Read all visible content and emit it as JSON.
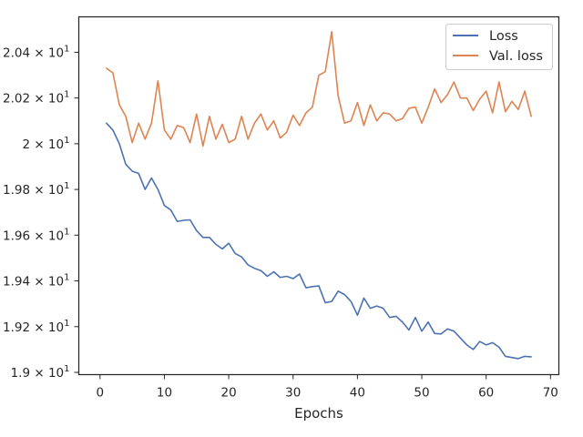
{
  "chart_data": {
    "type": "line",
    "xlabel": "Epochs",
    "ylabel": "",
    "xlim": [
      -3.3,
      71.3
    ],
    "ylim": [
      18.99,
      20.555
    ],
    "x_ticks": [
      0,
      10,
      20,
      30,
      40,
      50,
      60,
      70
    ],
    "x_tick_labels": [
      "0",
      "10",
      "20",
      "30",
      "40",
      "50",
      "60",
      "70"
    ],
    "y_ticks": [
      19.0,
      19.2,
      19.4,
      19.6,
      19.8,
      20.0,
      20.2,
      20.4
    ],
    "y_tick_labels": [
      {
        "mant": "1.9",
        "exp": "1"
      },
      {
        "mant": "1.92",
        "exp": "1"
      },
      {
        "mant": "1.94",
        "exp": "1"
      },
      {
        "mant": "1.96",
        "exp": "1"
      },
      {
        "mant": "1.98",
        "exp": "1"
      },
      {
        "mant": "2",
        "exp": "1"
      },
      {
        "mant": "2.02",
        "exp": "1"
      },
      {
        "mant": "2.04",
        "exp": "1"
      }
    ],
    "y_tick_times": "×",
    "y_tick_base": "10",
    "grid": false,
    "legend_position": "top-right",
    "x": [
      1,
      2,
      3,
      4,
      5,
      6,
      7,
      8,
      9,
      10,
      11,
      12,
      13,
      14,
      15,
      16,
      17,
      18,
      19,
      20,
      21,
      22,
      23,
      24,
      25,
      26,
      27,
      28,
      29,
      30,
      31,
      32,
      33,
      34,
      35,
      36,
      37,
      38,
      39,
      40,
      41,
      42,
      43,
      44,
      45,
      46,
      47,
      48,
      49,
      50,
      51,
      52,
      53,
      54,
      55,
      56,
      57,
      58,
      59,
      60,
      61,
      62,
      63,
      64,
      65,
      66,
      67
    ],
    "series": [
      {
        "name": "Loss",
        "color": "#4c72b0",
        "values": [
          20.09,
          20.06,
          20.0,
          19.91,
          19.88,
          19.87,
          19.8,
          19.85,
          19.8,
          19.73,
          19.71,
          19.66,
          19.665,
          19.667,
          19.62,
          19.59,
          19.59,
          19.56,
          19.54,
          19.565,
          19.52,
          19.505,
          19.47,
          19.455,
          19.445,
          19.42,
          19.44,
          19.415,
          19.42,
          19.41,
          19.43,
          19.37,
          19.375,
          19.378,
          19.305,
          19.31,
          19.355,
          19.34,
          19.31,
          19.25,
          19.325,
          19.28,
          19.29,
          19.28,
          19.24,
          19.245,
          19.22,
          19.185,
          19.24,
          19.18,
          19.22,
          19.17,
          19.168,
          19.19,
          19.18,
          19.15,
          19.12,
          19.1,
          19.135,
          19.12,
          19.13,
          19.11,
          19.07,
          19.065,
          19.06,
          19.07,
          19.068
        ]
      },
      {
        "name": "Val. loss",
        "color": "#dd8452",
        "values": [
          20.33,
          20.31,
          20.17,
          20.12,
          20.005,
          20.09,
          20.02,
          20.09,
          20.275,
          20.06,
          20.02,
          20.08,
          20.07,
          20.005,
          20.13,
          19.99,
          20.12,
          20.02,
          20.085,
          20.005,
          20.02,
          20.12,
          20.02,
          20.09,
          20.13,
          20.06,
          20.1,
          20.025,
          20.05,
          20.125,
          20.08,
          20.135,
          20.16,
          20.3,
          20.315,
          20.49,
          20.21,
          20.09,
          20.1,
          20.18,
          20.08,
          20.17,
          20.1,
          20.135,
          20.13,
          20.1,
          20.11,
          20.155,
          20.16,
          20.09,
          20.16,
          20.24,
          20.18,
          20.215,
          20.27,
          20.2,
          20.2,
          20.145,
          20.195,
          20.23,
          20.135,
          20.27,
          20.14,
          20.185,
          20.15,
          20.23,
          20.12
        ]
      }
    ]
  }
}
